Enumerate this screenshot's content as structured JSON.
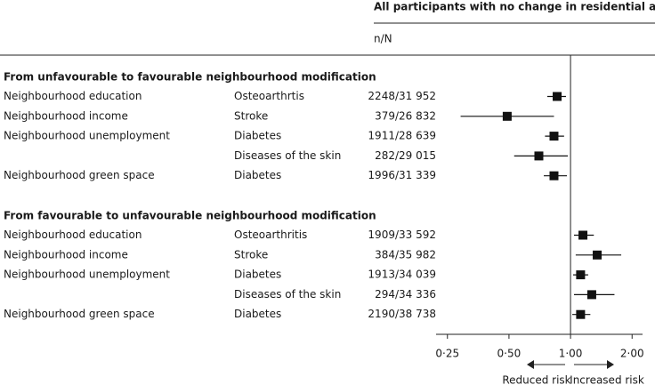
{
  "chart_data": {
    "type": "forest",
    "header": "All participants with no change in residential address",
    "column_label": "n/N",
    "groups": [
      {
        "heading": "From unfavourable to favourable neighbourhood modification",
        "rows": [
          {
            "exposure": "Neighbourhood education",
            "outcome": "Osteoarthrtis",
            "n_N": "2248/31 952",
            "estimate": 0.86,
            "lower": 0.77,
            "upper": 0.95
          },
          {
            "exposure": "Neighbourhood income",
            "outcome": "Stroke",
            "n_N": "379/26 832",
            "estimate": 0.49,
            "lower": 0.29,
            "upper": 0.83
          },
          {
            "exposure": "Neighbourhood unemployment",
            "outcome": "Diabetes",
            "n_N": "1911/28 639",
            "estimate": 0.83,
            "lower": 0.75,
            "upper": 0.93
          },
          {
            "exposure": null,
            "outcome": "Diseases of the skin",
            "n_N": "282/29 015",
            "estimate": 0.7,
            "lower": 0.53,
            "upper": 0.97
          },
          {
            "exposure": "Neighbourhood green space",
            "outcome": "Diabetes",
            "n_N": "1996/31 339",
            "estimate": 0.83,
            "lower": 0.74,
            "upper": 0.96
          }
        ]
      },
      {
        "heading": "From favourable to unfavourable neighbourhood modification",
        "rows": [
          {
            "exposure": "Neighbourhood education",
            "outcome": "Osteoarthritis",
            "n_N": "1909/33 592",
            "estimate": 1.15,
            "lower": 1.04,
            "upper": 1.3
          },
          {
            "exposure": "Neighbourhood income",
            "outcome": "Stroke",
            "n_N": "384/35 982",
            "estimate": 1.35,
            "lower": 1.06,
            "upper": 1.77
          },
          {
            "exposure": "Neighbourhood unemployment",
            "outcome": "Diabetes",
            "n_N": "1913/34 039",
            "estimate": 1.12,
            "lower": 1.03,
            "upper": 1.22
          },
          {
            "exposure": null,
            "outcome": "Diseases of the skin",
            "n_N": "294/34 336",
            "estimate": 1.27,
            "lower": 1.04,
            "upper": 1.64
          },
          {
            "exposure": "Neighbourhood green space",
            "outcome": "Diabetes",
            "n_N": "2190/38 738",
            "estimate": 1.12,
            "lower": 1.02,
            "upper": 1.25
          }
        ]
      }
    ],
    "log_scale": true,
    "xlim": [
      0.22,
      2.25
    ],
    "xticks": [
      {
        "value": 0.25,
        "label": "0·25"
      },
      {
        "value": 0.5,
        "label": "0·50"
      },
      {
        "value": 1,
        "label": "1·00"
      },
      {
        "value": 2,
        "label": "2·00"
      }
    ],
    "reduced_label": "Reduced risk",
    "increased_label": "Increased risk",
    "color": "#111111"
  }
}
